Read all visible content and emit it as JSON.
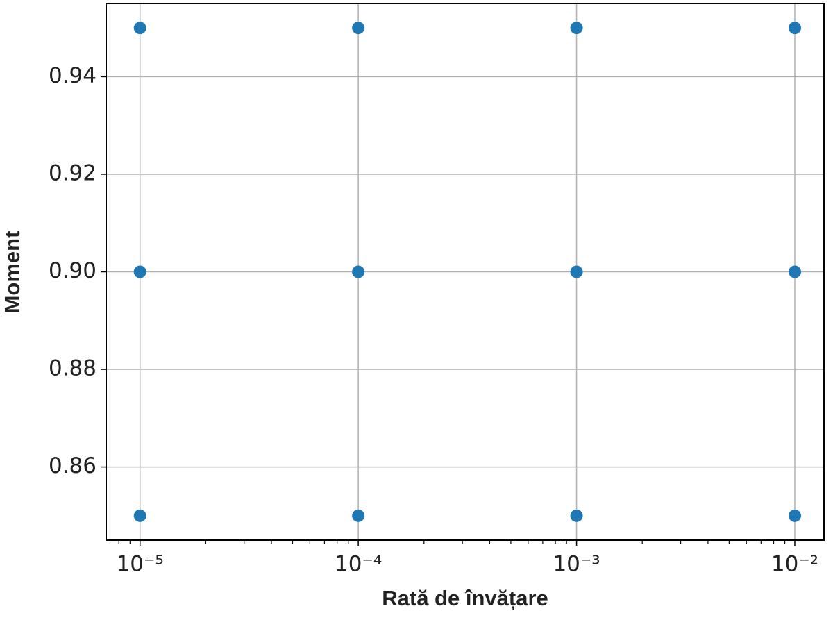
{
  "chart_data": {
    "type": "scatter",
    "x_label": "Rată de învățare",
    "y_label": "Moment",
    "x_scale": "log",
    "grid": true,
    "series": [
      {
        "color": "#1f77b4",
        "x": [
          1e-05,
          0.0001,
          0.001,
          0.01,
          1e-05,
          0.0001,
          0.001,
          0.01,
          1e-05,
          0.0001,
          0.001,
          0.01
        ],
        "values": [
          0.95,
          0.95,
          0.95,
          0.95,
          0.9,
          0.9,
          0.9,
          0.9,
          0.85,
          0.85,
          0.85,
          0.85
        ]
      }
    ],
    "xlim": [
      7e-06,
      0.0136
    ],
    "xticks": [
      {
        "value": 1e-05,
        "label": "10⁻⁵"
      },
      {
        "value": 0.0001,
        "label": "10⁻⁴"
      },
      {
        "value": 0.001,
        "label": "10⁻³"
      },
      {
        "value": 0.01,
        "label": "10⁻²"
      }
    ],
    "xminorticks": [
      8e-06,
      9e-06,
      2e-05,
      3e-05,
      4e-05,
      5e-05,
      6e-05,
      7e-05,
      8e-05,
      9e-05,
      0.0002,
      0.0003,
      0.0004,
      0.0005,
      0.0006,
      0.0007,
      0.0008,
      0.0009,
      0.002,
      0.003,
      0.004,
      0.005,
      0.006,
      0.007,
      0.008,
      0.009
    ],
    "ylim": [
      0.845,
      0.955
    ],
    "yticks": [
      0.86,
      0.88,
      {
        "value": 0.9,
        "label": "0.90"
      },
      0.92,
      0.94
    ]
  }
}
